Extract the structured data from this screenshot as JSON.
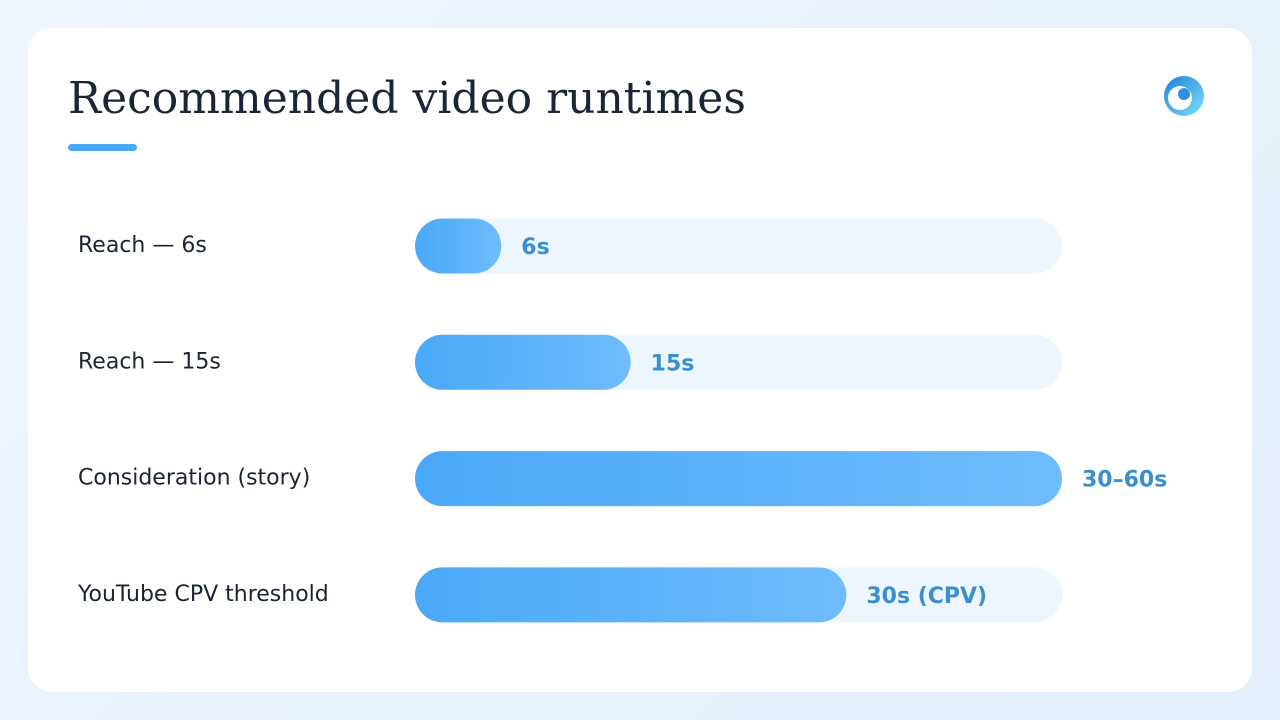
{
  "chart_data": {
    "type": "hbar",
    "title": "Recommended video runtimes",
    "categories": [
      "Reach — 6s",
      "Reach — 15s",
      "Consideration (story)",
      "YouTube CPV threshold"
    ],
    "values": [
      6,
      15,
      45,
      30
    ],
    "value_labels": [
      "6s",
      "15s",
      "30–60s",
      "30s (CPV)"
    ],
    "xlim": [
      0,
      45
    ],
    "color": "#4aa8f8"
  }
}
